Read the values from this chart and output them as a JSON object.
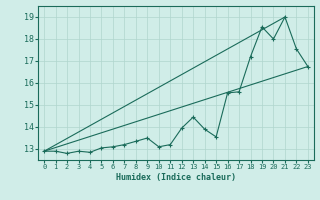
{
  "xlabel": "Humidex (Indice chaleur)",
  "bg_color": "#d0ede8",
  "grid_color": "#b0d5ce",
  "line_color": "#1a6b5a",
  "xlim": [
    -0.5,
    23.5
  ],
  "ylim": [
    12.5,
    19.5
  ],
  "xticks": [
    0,
    1,
    2,
    3,
    4,
    5,
    6,
    7,
    8,
    9,
    10,
    11,
    12,
    13,
    14,
    15,
    16,
    17,
    18,
    19,
    20,
    21,
    22,
    23
  ],
  "yticks": [
    13,
    14,
    15,
    16,
    17,
    18,
    19
  ],
  "line1_x": [
    0,
    1,
    2,
    3,
    4,
    5,
    6,
    7,
    8,
    9,
    10,
    11,
    12,
    13,
    14,
    15,
    16,
    17,
    18,
    19,
    20,
    21,
    22,
    23
  ],
  "line1_y": [
    12.9,
    12.9,
    12.8,
    12.9,
    12.85,
    13.05,
    13.1,
    13.2,
    13.35,
    13.5,
    13.1,
    13.2,
    13.95,
    14.45,
    13.9,
    13.55,
    15.55,
    15.6,
    17.2,
    18.55,
    18.0,
    19.0,
    17.55,
    16.75
  ],
  "line2_x": [
    0,
    23
  ],
  "line2_y": [
    12.9,
    16.75
  ],
  "line3_x": [
    0,
    21
  ],
  "line3_y": [
    12.9,
    19.0
  ]
}
